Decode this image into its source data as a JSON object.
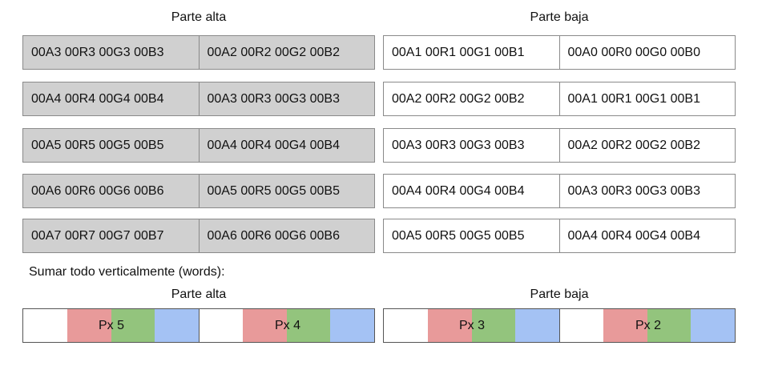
{
  "headers": {
    "left": "Parte alta",
    "right": "Parte baja"
  },
  "left_rows": [
    [
      "00A3 00R3 00G3 00B3",
      "00A2 00R2 00G2 00B2"
    ],
    [
      "00A4 00R4 00G4 00B4",
      "00A3 00R3 00G3 00B3"
    ],
    [
      "00A5 00R5 00G5 00B5",
      "00A4 00R4 00G4 00B4"
    ],
    [
      "00A6 00R6 00G6 00B6",
      "00A5 00R5 00G5 00B5"
    ],
    [
      "00A7 00R7 00G7 00B7",
      "00A6 00R6 00G6 00B6"
    ]
  ],
  "right_rows": [
    [
      "00A1 00R1 00G1 00B1",
      "00A0 00R0 00G0 00B0"
    ],
    [
      "00A2 00R2 00G2 00B2",
      "00A1 00R1 00G1 00B1"
    ],
    [
      "00A3 00R3 00G3 00B3",
      "00A2 00R2 00G2 00B2"
    ],
    [
      "00A4 00R4 00G4 00B4",
      "00A3 00R3 00G3 00B3"
    ],
    [
      "00A5 00R5 00G5 00B5",
      "00A4 00R4 00G4 00B4"
    ]
  ],
  "note": "Sumar todo verticalmente (words):",
  "sum_headers": {
    "left": "Parte alta",
    "right": "Parte baja"
  },
  "pixels": {
    "left": [
      "Px 5",
      "Px 4"
    ],
    "right": [
      "Px 3",
      "Px 2"
    ]
  },
  "colors": {
    "high_part_fill": "#d0d0d0",
    "alpha": "#ffffff",
    "red": "#e89a9a",
    "green": "#93c47d",
    "blue": "#a4c2f4"
  }
}
